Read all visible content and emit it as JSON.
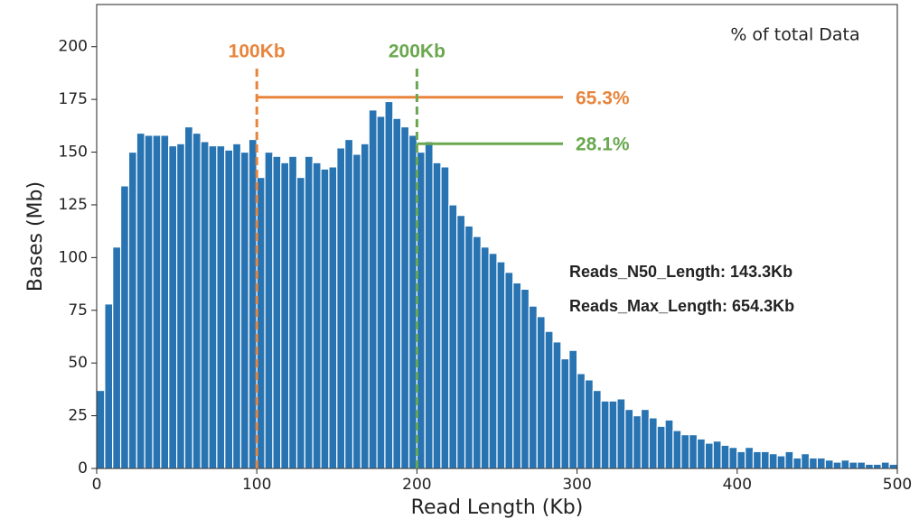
{
  "chart_data": {
    "type": "histogram",
    "xlabel": "Read Length (Kb)",
    "ylabel": "Bases (Mb)",
    "legend_note": "% of total Data",
    "color": "#2874b2",
    "bins": [
      0,
      5,
      10,
      15,
      20,
      25,
      30,
      35,
      40,
      45,
      50,
      55,
      60,
      65,
      70,
      75,
      80,
      85,
      90,
      95,
      100,
      105,
      110,
      115,
      120,
      125,
      130,
      135,
      140,
      145,
      150,
      155,
      160,
      165,
      170,
      175,
      180,
      185,
      190,
      195,
      200,
      205,
      210,
      215,
      220,
      225,
      230,
      235,
      240,
      245,
      250,
      255,
      260,
      265,
      270,
      275,
      280,
      285,
      290,
      295,
      300,
      305,
      310,
      315,
      320,
      325,
      330,
      335,
      340,
      345,
      350,
      355,
      360,
      365,
      370,
      375,
      380,
      385,
      390,
      395,
      400,
      405,
      410,
      415,
      420,
      425,
      430,
      435,
      440,
      445,
      450,
      455,
      460,
      465,
      470,
      475,
      480,
      485,
      490,
      495,
      500
    ],
    "values": [
      37,
      78,
      105,
      134,
      150,
      159,
      158,
      158,
      158,
      153,
      154,
      162,
      159,
      155,
      153,
      153,
      151,
      154,
      150,
      156,
      138,
      150,
      148,
      145,
      148,
      138,
      148,
      145,
      142,
      143,
      152,
      156,
      149,
      154,
      170,
      167,
      174,
      166,
      162,
      158,
      150,
      155,
      145,
      143,
      125,
      120,
      115,
      110,
      105,
      102,
      98,
      93,
      88,
      85,
      77,
      72,
      65,
      60,
      52,
      56,
      45,
      42,
      37,
      32,
      32,
      33,
      28,
      25,
      28,
      24,
      20,
      23,
      18,
      16,
      16,
      14,
      12,
      13,
      11,
      10,
      8,
      10,
      8,
      8,
      7,
      6,
      8,
      5,
      7,
      5,
      5,
      4,
      3,
      4,
      3,
      3,
      2,
      2,
      3,
      2
    ],
    "xlim": [
      0,
      500
    ],
    "xticks": [
      0,
      100,
      200,
      300,
      400,
      500
    ],
    "ylim": [
      0,
      220
    ],
    "yticks": [
      0,
      25,
      50,
      75,
      100,
      125,
      150,
      175,
      200
    ],
    "markers": [
      {
        "x": 100,
        "label": "100Kb",
        "y": 176,
        "percent": "65.3%",
        "color": "#e8853d"
      },
      {
        "x": 200,
        "label": "200Kb",
        "y": 154,
        "percent": "28.1%",
        "color": "#6aa84f"
      }
    ],
    "stats": [
      "Reads_N50_Length: 143.3Kb",
      "Reads_Max_Length: 654.3Kb"
    ]
  }
}
